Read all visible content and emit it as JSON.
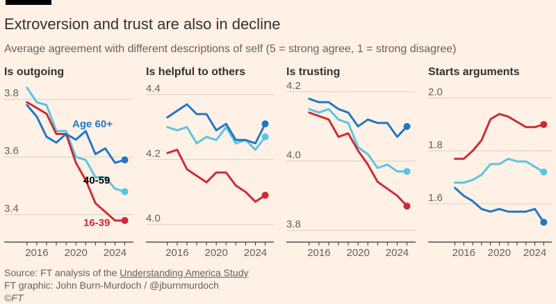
{
  "header": {
    "title": "Extroversion and trust are also in decline",
    "subtitle": "Average agreement with different descriptions of self (5 = strong agree, 1 = strong disagree)"
  },
  "colors": {
    "background": "#fff1e5",
    "age_60_plus": "#1f77c4",
    "age_40_59": "#5bc4e4",
    "age_16_39": "#cc2b36",
    "grid": "#d9cfc5",
    "axis": "#33302e"
  },
  "chart_data": [
    {
      "type": "line",
      "title": "Is outgoing",
      "xticks": [
        2016,
        2020,
        2024
      ],
      "yticks": [
        3.4,
        3.6,
        3.8
      ],
      "ylim": [
        3.31,
        3.85
      ],
      "xlim": [
        2014.8,
        2025.6
      ],
      "series_labels": [
        "Age 60+",
        "40-59",
        "16-39"
      ],
      "series": [
        {
          "name": "Age 60+",
          "key": "age_60_plus",
          "x": [
            2015,
            2016,
            2017,
            2018,
            2019,
            2020,
            2021,
            2022,
            2023,
            2024,
            2025
          ],
          "values": [
            3.78,
            3.74,
            3.67,
            3.65,
            3.68,
            3.66,
            3.69,
            3.61,
            3.63,
            3.58,
            3.59
          ]
        },
        {
          "name": "40-59",
          "key": "age_40_59",
          "x": [
            2015,
            2016,
            2017,
            2018,
            2019,
            2020,
            2021,
            2022,
            2023,
            2024,
            2025
          ],
          "values": [
            3.84,
            3.79,
            3.78,
            3.69,
            3.69,
            3.6,
            3.59,
            3.53,
            3.53,
            3.49,
            3.48
          ]
        },
        {
          "name": "16-39",
          "key": "age_16_39",
          "x": [
            2015,
            2016,
            2017,
            2018,
            2019,
            2020,
            2021,
            2022,
            2023,
            2024,
            2025
          ],
          "values": [
            3.79,
            3.77,
            3.75,
            3.68,
            3.68,
            3.58,
            3.52,
            3.44,
            3.41,
            3.38,
            3.38
          ]
        }
      ]
    },
    {
      "type": "line",
      "title": "Is helpful to others",
      "xticks": [
        2016,
        2020,
        2024
      ],
      "yticks": [
        4.0,
        4.2,
        4.4
      ],
      "ylim": [
        3.95,
        4.43
      ],
      "xlim": [
        2014.8,
        2025.6
      ],
      "series": [
        {
          "name": "Age 60+",
          "key": "age_60_plus",
          "x": [
            2015,
            2016,
            2017,
            2018,
            2019,
            2020,
            2021,
            2022,
            2023,
            2024,
            2025
          ],
          "values": [
            4.33,
            4.35,
            4.37,
            4.34,
            4.34,
            4.29,
            4.31,
            4.26,
            4.26,
            4.25,
            4.31
          ]
        },
        {
          "name": "40-59",
          "key": "age_40_59",
          "x": [
            2015,
            2016,
            2017,
            2018,
            2019,
            2020,
            2021,
            2022,
            2023,
            2024,
            2025
          ],
          "values": [
            4.3,
            4.29,
            4.3,
            4.25,
            4.27,
            4.26,
            4.3,
            4.25,
            4.26,
            4.23,
            4.27
          ]
        },
        {
          "name": "16-39",
          "key": "age_16_39",
          "x": [
            2015,
            2016,
            2017,
            2018,
            2019,
            2020,
            2021,
            2022,
            2023,
            2024,
            2025
          ],
          "values": [
            4.22,
            4.23,
            4.17,
            4.15,
            4.13,
            4.16,
            4.16,
            4.12,
            4.1,
            4.07,
            4.09
          ]
        }
      ]
    },
    {
      "type": "line",
      "title": "Is trusting",
      "xticks": [
        2016,
        2020,
        2024
      ],
      "yticks": [
        3.8,
        4.0,
        4.2
      ],
      "ylim": [
        3.77,
        4.22
      ],
      "xlim": [
        2014.8,
        2025.6
      ],
      "series": [
        {
          "name": "Age 60+",
          "key": "age_60_plus",
          "x": [
            2015,
            2016,
            2017,
            2018,
            2019,
            2020,
            2021,
            2022,
            2023,
            2024,
            2025
          ],
          "values": [
            4.18,
            4.17,
            4.17,
            4.15,
            4.14,
            4.1,
            4.12,
            4.11,
            4.11,
            4.07,
            4.1
          ]
        },
        {
          "name": "40-59",
          "key": "age_40_59",
          "x": [
            2015,
            2016,
            2017,
            2018,
            2019,
            2020,
            2021,
            2022,
            2023,
            2024,
            2025
          ],
          "values": [
            4.15,
            4.14,
            4.15,
            4.12,
            4.11,
            4.04,
            4.02,
            3.98,
            3.99,
            3.97,
            3.97
          ]
        },
        {
          "name": "16-39",
          "key": "age_16_39",
          "x": [
            2015,
            2016,
            2017,
            2018,
            2019,
            2020,
            2021,
            2022,
            2023,
            2024,
            2025
          ],
          "values": [
            4.14,
            4.13,
            4.12,
            4.07,
            4.08,
            4.03,
            3.99,
            3.94,
            3.92,
            3.9,
            3.87
          ]
        }
      ]
    },
    {
      "type": "line",
      "title": "Starts arguments",
      "xticks": [
        2016,
        2020,
        2024
      ],
      "yticks": [
        1.6,
        1.8,
        2.0
      ],
      "ylim": [
        1.46,
        2.05
      ],
      "xlim": [
        2014.8,
        2025.6
      ],
      "series": [
        {
          "name": "Age 60+",
          "key": "age_60_plus",
          "x": [
            2015,
            2016,
            2017,
            2018,
            2019,
            2020,
            2021,
            2022,
            2023,
            2024,
            2025
          ],
          "values": [
            1.66,
            1.63,
            1.61,
            1.58,
            1.57,
            1.58,
            1.57,
            1.57,
            1.57,
            1.58,
            1.53
          ]
        },
        {
          "name": "40-59",
          "key": "age_40_59",
          "x": [
            2015,
            2016,
            2017,
            2018,
            2019,
            2020,
            2021,
            2022,
            2023,
            2024,
            2025
          ],
          "values": [
            1.68,
            1.68,
            1.69,
            1.71,
            1.75,
            1.75,
            1.77,
            1.76,
            1.76,
            1.74,
            1.72
          ]
        },
        {
          "name": "16-39",
          "key": "age_16_39",
          "x": [
            2015,
            2016,
            2017,
            2018,
            2019,
            2020,
            2021,
            2022,
            2023,
            2024,
            2025
          ],
          "values": [
            1.77,
            1.77,
            1.8,
            1.84,
            1.92,
            1.94,
            1.93,
            1.91,
            1.89,
            1.89,
            1.9
          ]
        }
      ]
    }
  ],
  "footer": {
    "source_prefix": "Source: FT analysis of the ",
    "source_link": "Understanding America Study",
    "credit": "FT graphic: John Burn-Murdoch / @jburnmurdoch",
    "copyright": "©FT"
  }
}
